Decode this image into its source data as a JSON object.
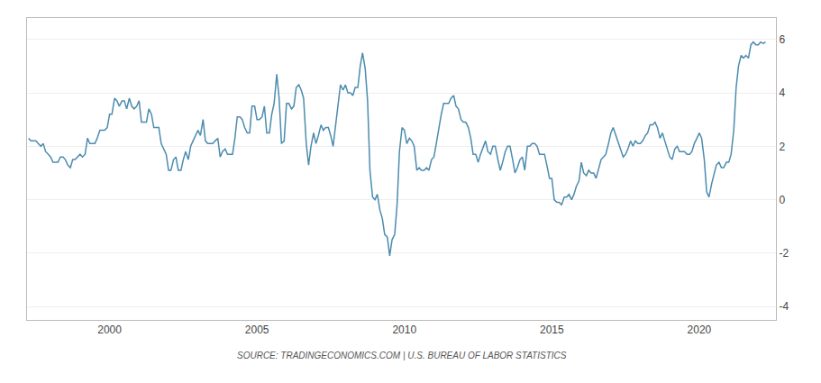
{
  "chart_data": {
    "type": "line",
    "annotations": [
      "SOURCE: TRADINGECONOMICS.COM | U.S. BUREAU OF LABOR STATISTICS"
    ],
    "color": "#4c8caf",
    "grid": true,
    "xlim": [
      1997.2,
      2022.6
    ],
    "xticks": [
      2000,
      2005,
      2010,
      2015,
      2020
    ],
    "ylim": [
      -4.5,
      6.8
    ],
    "yticks": [
      -4,
      -2,
      0,
      2,
      4,
      6
    ],
    "x": [
      1997.25,
      1997.33,
      1997.42,
      1997.5,
      1997.58,
      1997.67,
      1997.75,
      1997.83,
      1997.92,
      1998.0,
      1998.08,
      1998.17,
      1998.25,
      1998.33,
      1998.42,
      1998.5,
      1998.58,
      1998.67,
      1998.75,
      1998.83,
      1998.92,
      1999.0,
      1999.08,
      1999.17,
      1999.25,
      1999.33,
      1999.42,
      1999.5,
      1999.58,
      1999.67,
      1999.75,
      1999.83,
      1999.92,
      2000.0,
      2000.08,
      2000.17,
      2000.25,
      2000.33,
      2000.42,
      2000.5,
      2000.58,
      2000.67,
      2000.75,
      2000.83,
      2000.92,
      2001.0,
      2001.08,
      2001.17,
      2001.25,
      2001.33,
      2001.42,
      2001.5,
      2001.58,
      2001.67,
      2001.75,
      2001.83,
      2001.92,
      2002.0,
      2002.08,
      2002.17,
      2002.25,
      2002.33,
      2002.42,
      2002.5,
      2002.58,
      2002.67,
      2002.75,
      2002.83,
      2002.92,
      2003.0,
      2003.08,
      2003.17,
      2003.25,
      2003.33,
      2003.42,
      2003.5,
      2003.58,
      2003.67,
      2003.75,
      2003.83,
      2003.92,
      2004.0,
      2004.08,
      2004.17,
      2004.25,
      2004.33,
      2004.42,
      2004.5,
      2004.58,
      2004.67,
      2004.75,
      2004.83,
      2004.92,
      2005.0,
      2005.08,
      2005.17,
      2005.25,
      2005.33,
      2005.42,
      2005.5,
      2005.58,
      2005.67,
      2005.75,
      2005.83,
      2005.92,
      2006.0,
      2006.08,
      2006.17,
      2006.25,
      2006.33,
      2006.42,
      2006.5,
      2006.58,
      2006.67,
      2006.75,
      2006.83,
      2006.92,
      2007.0,
      2007.08,
      2007.17,
      2007.25,
      2007.33,
      2007.42,
      2007.5,
      2007.58,
      2007.67,
      2007.75,
      2007.83,
      2007.92,
      2008.0,
      2008.08,
      2008.17,
      2008.25,
      2008.33,
      2008.42,
      2008.5,
      2008.58,
      2008.67,
      2008.75,
      2008.83,
      2008.92,
      2009.0,
      2009.08,
      2009.17,
      2009.25,
      2009.33,
      2009.42,
      2009.5,
      2009.58,
      2009.67,
      2009.75,
      2009.83,
      2009.92,
      2010.0,
      2010.08,
      2010.17,
      2010.25,
      2010.33,
      2010.42,
      2010.5,
      2010.58,
      2010.67,
      2010.75,
      2010.83,
      2010.92,
      2011.0,
      2011.08,
      2011.17,
      2011.25,
      2011.33,
      2011.42,
      2011.5,
      2011.58,
      2011.67,
      2011.75,
      2011.83,
      2011.92,
      2012.0,
      2012.08,
      2012.17,
      2012.25,
      2012.33,
      2012.42,
      2012.5,
      2012.58,
      2012.67,
      2012.75,
      2012.83,
      2012.92,
      2013.0,
      2013.08,
      2013.17,
      2013.25,
      2013.33,
      2013.42,
      2013.5,
      2013.58,
      2013.67,
      2013.75,
      2013.83,
      2013.92,
      2014.0,
      2014.08,
      2014.17,
      2014.25,
      2014.33,
      2014.42,
      2014.5,
      2014.58,
      2014.67,
      2014.75,
      2014.83,
      2014.92,
      2015.0,
      2015.08,
      2015.17,
      2015.25,
      2015.33,
      2015.42,
      2015.5,
      2015.58,
      2015.67,
      2015.75,
      2015.83,
      2015.92,
      2016.0,
      2016.08,
      2016.17,
      2016.25,
      2016.33,
      2016.42,
      2016.5,
      2016.58,
      2016.67,
      2016.75,
      2016.83,
      2016.92,
      2017.0,
      2017.08,
      2017.17,
      2017.25,
      2017.33,
      2017.42,
      2017.5,
      2017.58,
      2017.67,
      2017.75,
      2017.83,
      2017.92,
      2018.0,
      2018.08,
      2018.17,
      2018.25,
      2018.33,
      2018.42,
      2018.5,
      2018.58,
      2018.67,
      2018.75,
      2018.83,
      2018.92,
      2019.0,
      2019.08,
      2019.17,
      2019.25,
      2019.33,
      2019.42,
      2019.5,
      2019.58,
      2019.67,
      2019.75,
      2019.83,
      2019.92,
      2020.0,
      2020.08,
      2020.17,
      2020.25,
      2020.33,
      2020.42,
      2020.5,
      2020.58,
      2020.67,
      2020.75,
      2020.83,
      2020.92,
      2021.0,
      2021.08,
      2021.17,
      2021.25,
      2021.33,
      2021.42,
      2021.5,
      2021.58,
      2021.67,
      2021.75,
      2021.83,
      2021.92,
      2022.0,
      2022.08,
      2022.17,
      2022.25
    ],
    "values": [
      2.3,
      2.2,
      2.2,
      2.2,
      2.1,
      2.0,
      2.1,
      1.8,
      1.7,
      1.6,
      1.4,
      1.4,
      1.4,
      1.6,
      1.6,
      1.5,
      1.3,
      1.2,
      1.5,
      1.5,
      1.6,
      1.7,
      1.6,
      1.7,
      2.3,
      2.1,
      2.1,
      2.1,
      2.3,
      2.6,
      2.6,
      2.6,
      2.7,
      3.2,
      3.2,
      3.8,
      3.7,
      3.5,
      3.7,
      3.7,
      3.4,
      3.8,
      3.5,
      3.4,
      3.5,
      3.7,
      2.9,
      2.9,
      2.9,
      3.4,
      3.2,
      2.7,
      2.7,
      2.7,
      2.1,
      1.9,
      1.7,
      1.1,
      1.1,
      1.5,
      1.6,
      1.1,
      1.1,
      1.5,
      1.8,
      1.5,
      2.0,
      2.2,
      2.4,
      2.6,
      2.4,
      3.0,
      2.2,
      2.1,
      2.1,
      2.1,
      2.2,
      2.3,
      1.6,
      1.8,
      1.9,
      1.7,
      1.7,
      1.7,
      2.3,
      3.1,
      3.1,
      3.0,
      2.7,
      2.5,
      2.5,
      3.5,
      3.5,
      3.0,
      3.0,
      3.1,
      3.5,
      2.5,
      2.5,
      3.2,
      3.6,
      4.7,
      3.8,
      2.1,
      2.2,
      3.6,
      3.6,
      3.4,
      3.5,
      4.2,
      4.3,
      4.1,
      3.8,
      2.1,
      1.3,
      2.0,
      2.5,
      2.1,
      2.4,
      2.8,
      2.6,
      2.7,
      2.7,
      2.4,
      2.0,
      2.8,
      3.5,
      4.3,
      4.1,
      4.3,
      4.0,
      4.0,
      3.9,
      4.2,
      4.2,
      5.0,
      5.5,
      4.9,
      3.7,
      1.1,
      0.1,
      0.0,
      0.2,
      -0.4,
      -0.7,
      -1.3,
      -1.4,
      -2.1,
      -1.5,
      -1.3,
      -0.2,
      1.8,
      2.7,
      2.6,
      2.1,
      2.3,
      2.2,
      2.0,
      1.1,
      1.2,
      1.1,
      1.1,
      1.2,
      1.1,
      1.5,
      1.6,
      2.1,
      2.7,
      3.2,
      3.6,
      3.6,
      3.6,
      3.8,
      3.9,
      3.5,
      3.4,
      3.0,
      2.9,
      2.9,
      2.7,
      2.3,
      1.7,
      1.7,
      1.4,
      1.7,
      2.0,
      2.2,
      1.8,
      1.7,
      2.0,
      2.0,
      1.5,
      1.1,
      1.4,
      1.8,
      2.0,
      2.0,
      1.5,
      1.0,
      1.2,
      1.5,
      1.6,
      1.1,
      2.0,
      2.0,
      2.1,
      2.1,
      2.0,
      1.7,
      1.7,
      1.7,
      1.3,
      0.8,
      0.8,
      0.0,
      -0.1,
      -0.1,
      -0.2,
      0.1,
      0.1,
      0.2,
      0.0,
      0.2,
      0.5,
      0.7,
      1.4,
      1.0,
      0.9,
      1.1,
      1.0,
      1.0,
      0.8,
      1.1,
      1.5,
      1.6,
      1.7,
      2.1,
      2.5,
      2.7,
      2.4,
      2.2,
      1.9,
      1.6,
      1.7,
      1.9,
      2.2,
      2.0,
      2.2,
      2.1,
      2.1,
      2.2,
      2.4,
      2.5,
      2.8,
      2.8,
      2.9,
      2.7,
      2.3,
      2.5,
      2.2,
      1.9,
      1.6,
      1.5,
      1.9,
      2.0,
      1.8,
      1.8,
      1.8,
      1.7,
      1.7,
      1.8,
      2.1,
      2.3,
      2.5,
      2.3,
      1.5,
      0.3,
      0.1,
      0.6,
      1.0,
      1.3,
      1.4,
      1.2,
      1.2,
      1.4,
      1.4,
      1.7,
      2.6,
      4.2,
      5.0,
      5.4,
      5.3,
      5.4,
      5.3,
      5.8,
      5.9,
      5.8,
      5.8,
      5.9,
      5.85,
      5.9
    ]
  }
}
